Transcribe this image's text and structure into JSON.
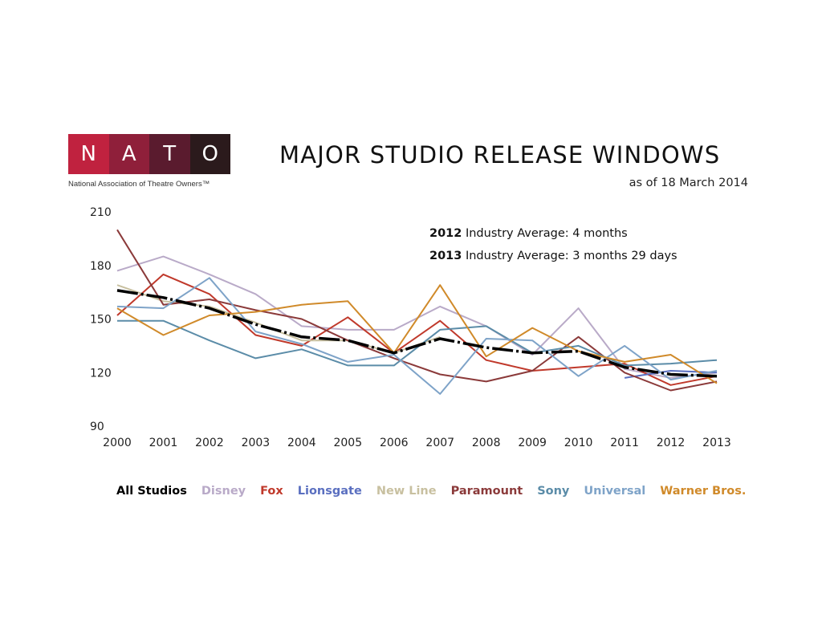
{
  "logo": {
    "letters": [
      "N",
      "A",
      "T",
      "O"
    ],
    "colors": [
      "#c0223f",
      "#8f1f3a",
      "#5a1b2e",
      "#2b1a1c"
    ],
    "tagline": "National Association of Theatre Owners™"
  },
  "header": {
    "title": "MAJOR STUDIO RELEASE WINDOWS",
    "subtitle": "as of 18 March 2014"
  },
  "notes": [
    {
      "year": "2012",
      "text": " Industry Average: 4 months"
    },
    {
      "year": "2013",
      "text": " Industry Average: 3 months 29 days"
    }
  ],
  "chart_data": {
    "type": "line",
    "title": "MAJOR STUDIO RELEASE WINDOWS",
    "xlabel": "",
    "ylabel": "",
    "x": [
      2000,
      2001,
      2002,
      2003,
      2004,
      2005,
      2006,
      2007,
      2008,
      2009,
      2010,
      2011,
      2012,
      2013
    ],
    "xlim": [
      2000,
      2013
    ],
    "ylim": [
      90,
      210
    ],
    "yticks": [
      90,
      120,
      150,
      180,
      210
    ],
    "grid": false,
    "legend_position": "bottom",
    "series": [
      {
        "name": "Disney",
        "color": "#b9aac8",
        "values": [
          177,
          185,
          175,
          164,
          146,
          144,
          144,
          157,
          146,
          130,
          156,
          122,
          117,
          120
        ]
      },
      {
        "name": "Fox",
        "color": "#c0392b",
        "values": [
          152,
          175,
          164,
          141,
          135,
          151,
          131,
          149,
          127,
          121,
          123,
          125,
          113,
          118
        ]
      },
      {
        "name": "Lionsgate",
        "color": "#5a6fc0",
        "values": [
          null,
          null,
          null,
          null,
          null,
          null,
          null,
          null,
          null,
          null,
          null,
          117,
          121,
          120
        ]
      },
      {
        "name": "New Line",
        "color": "#c8c0a0",
        "values": [
          169,
          160,
          157,
          148,
          138,
          138,
          131,
          140,
          null,
          null,
          null,
          null,
          null,
          null
        ]
      },
      {
        "name": "Paramount",
        "color": "#8b3a3a",
        "values": [
          200,
          158,
          161,
          155,
          150,
          138,
          128,
          119,
          115,
          121,
          140,
          120,
          110,
          115
        ]
      },
      {
        "name": "Sony",
        "color": "#5b8ca8",
        "values": [
          149,
          149,
          138,
          128,
          133,
          124,
          124,
          144,
          146,
          131,
          135,
          124,
          125,
          127
        ]
      },
      {
        "name": "Universal",
        "color": "#7ea3c8",
        "values": [
          157,
          156,
          173,
          143,
          136,
          126,
          130,
          108,
          139,
          138,
          118,
          135,
          116,
          121
        ]
      },
      {
        "name": "Warner Bros.",
        "color": "#d08a2a",
        "values": [
          156,
          141,
          152,
          154,
          158,
          160,
          131,
          169,
          129,
          145,
          132,
          126,
          130,
          114
        ]
      },
      {
        "name": "All Studios",
        "color": "#000000",
        "values": [
          166,
          162,
          156,
          147,
          140,
          138,
          131,
          139,
          134,
          131,
          132,
          123,
          119,
          118
        ]
      }
    ],
    "legend": [
      {
        "label": "All Studios",
        "color": "#000000"
      },
      {
        "label": "Disney",
        "color": "#b9aac8"
      },
      {
        "label": "Fox",
        "color": "#c0392b"
      },
      {
        "label": "Lionsgate",
        "color": "#5a6fc0"
      },
      {
        "label": "New Line",
        "color": "#c8c0a0"
      },
      {
        "label": "Paramount",
        "color": "#8b3a3a"
      },
      {
        "label": "Sony",
        "color": "#5b8ca8"
      },
      {
        "label": "Universal",
        "color": "#7ea3c8"
      },
      {
        "label": "Warner Bros.",
        "color": "#d08a2a"
      }
    ]
  }
}
